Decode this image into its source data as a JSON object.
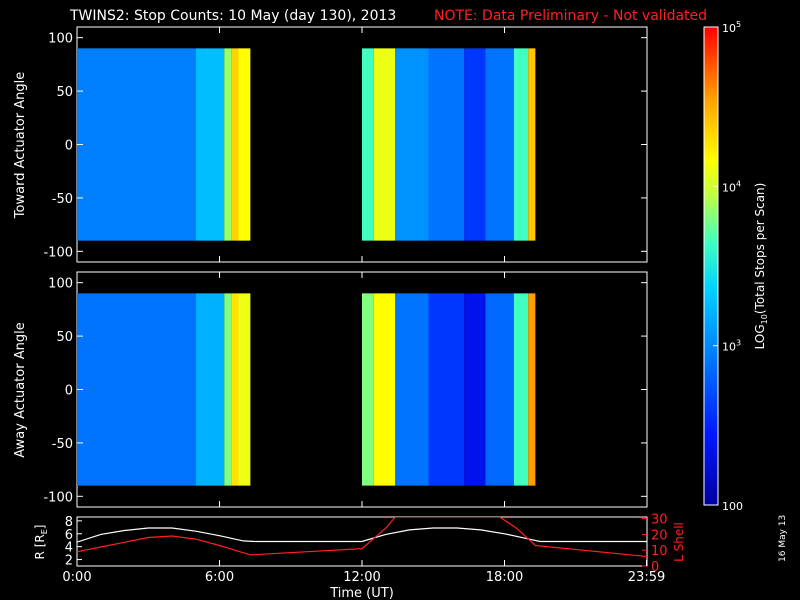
{
  "title": {
    "main": "TWINS2: Stop Counts: 10 May (day 130), 2013",
    "note": "NOTE: Data Preliminary - Not validated"
  },
  "colors": {
    "background": "#000000",
    "axes": "#ffffff",
    "note": "#ff2020",
    "lshell_line": "#ff2020",
    "r_line": "#ffffff"
  },
  "colorbar": {
    "label": "LOG10(Total Stops per Scan)",
    "label_base": "LOG",
    "label_sub": "10",
    "label_rest": "(Total Stops per Scan)",
    "ticks": [
      {
        "value": 100,
        "text": "100"
      },
      {
        "value": 1000,
        "text": "10",
        "exp": "3"
      },
      {
        "value": 10000,
        "text": "10",
        "exp": "4"
      },
      {
        "value": 100000,
        "text": "10",
        "exp": "5"
      }
    ],
    "range": [
      100,
      100000
    ],
    "scale": "log"
  },
  "date_stamp": "16 May 13",
  "chart_data": [
    {
      "type": "heatmap",
      "panel": "toward",
      "ylabel": "Toward Actuator Angle",
      "ylim": [
        -110,
        110
      ],
      "yticks": [
        -100,
        -50,
        0,
        50,
        100
      ],
      "xlim": [
        0,
        24
      ],
      "data_windows": [
        [
          0.0,
          7.3
        ],
        [
          12.0,
          19.3
        ]
      ],
      "angle_range": [
        -90,
        90
      ],
      "bands": [
        {
          "t0": 0.0,
          "t1": 5.0,
          "level": 0.32
        },
        {
          "t0": 5.0,
          "t1": 6.2,
          "level": 0.42
        },
        {
          "t0": 6.2,
          "t1": 6.5,
          "level": 0.62
        },
        {
          "t0": 6.5,
          "t1": 6.8,
          "level": 0.78
        },
        {
          "t0": 6.8,
          "t1": 7.3,
          "level": 0.72
        },
        {
          "t0": 12.0,
          "t1": 12.5,
          "level": 0.55
        },
        {
          "t0": 12.5,
          "t1": 13.4,
          "level": 0.7
        },
        {
          "t0": 13.4,
          "t1": 14.8,
          "level": 0.35
        },
        {
          "t0": 14.8,
          "t1": 16.3,
          "level": 0.3
        },
        {
          "t0": 16.3,
          "t1": 17.2,
          "level": 0.2
        },
        {
          "t0": 17.2,
          "t1": 18.4,
          "level": 0.3
        },
        {
          "t0": 18.4,
          "t1": 19.0,
          "level": 0.55
        },
        {
          "t0": 19.0,
          "t1": 19.3,
          "level": 0.8
        }
      ]
    },
    {
      "type": "heatmap",
      "panel": "away",
      "ylabel": "Away Actuator Angle",
      "ylim": [
        -110,
        110
      ],
      "yticks": [
        -100,
        -50,
        0,
        50,
        100
      ],
      "xlim": [
        0,
        24
      ],
      "data_windows": [
        [
          0.0,
          7.3
        ],
        [
          12.0,
          19.3
        ]
      ],
      "angle_range": [
        -90,
        90
      ],
      "bands": [
        {
          "t0": 0.0,
          "t1": 5.0,
          "level": 0.3
        },
        {
          "t0": 5.0,
          "t1": 6.2,
          "level": 0.4
        },
        {
          "t0": 6.2,
          "t1": 6.5,
          "level": 0.6
        },
        {
          "t0": 6.5,
          "t1": 6.8,
          "level": 0.76
        },
        {
          "t0": 6.8,
          "t1": 7.3,
          "level": 0.7
        },
        {
          "t0": 12.0,
          "t1": 12.5,
          "level": 0.6
        },
        {
          "t0": 12.5,
          "t1": 13.4,
          "level": 0.72
        },
        {
          "t0": 13.4,
          "t1": 14.8,
          "level": 0.3
        },
        {
          "t0": 14.8,
          "t1": 16.3,
          "level": 0.2
        },
        {
          "t0": 16.3,
          "t1": 17.2,
          "level": 0.12
        },
        {
          "t0": 17.2,
          "t1": 18.4,
          "level": 0.28
        },
        {
          "t0": 18.4,
          "t1": 19.0,
          "level": 0.55
        },
        {
          "t0": 19.0,
          "t1": 19.3,
          "level": 0.85
        }
      ]
    },
    {
      "type": "line",
      "panel": "orbit",
      "xlabel": "Time (UT)",
      "xticks": [
        {
          "value": 0,
          "text": "0:00"
        },
        {
          "value": 6,
          "text": "6:00"
        },
        {
          "value": 12,
          "text": "12:00"
        },
        {
          "value": 18,
          "text": "18:00"
        },
        {
          "value": 23.98,
          "text": "23:59"
        }
      ],
      "xlim": [
        0,
        24
      ],
      "left_axis": {
        "label": "R [RE]",
        "label_base": "R [R",
        "label_sub": "E",
        "label_end": "]",
        "ylim": [
          1,
          8.6
        ],
        "ticks": [
          2,
          4,
          6,
          8
        ]
      },
      "right_axis": {
        "label": "L Shell",
        "ylim": [
          0,
          31
        ],
        "ticks": [
          0,
          10,
          20,
          30
        ]
      },
      "series": [
        {
          "name": "R",
          "axis": "left",
          "x": [
            0,
            1,
            2,
            3,
            4,
            5,
            6,
            7,
            7.5,
            12,
            13,
            14,
            15,
            16,
            17,
            18,
            19,
            19.5,
            24
          ],
          "y": [
            4.7,
            5.9,
            6.5,
            6.9,
            6.9,
            6.4,
            5.7,
            4.9,
            4.8,
            4.8,
            5.9,
            6.6,
            6.9,
            6.9,
            6.6,
            6.0,
            5.2,
            4.8,
            4.8
          ]
        },
        {
          "name": "L Shell",
          "axis": "right",
          "x": [
            0,
            1,
            2,
            3,
            4,
            5,
            6,
            7.3,
            12,
            13,
            13.4,
            17.8,
            18.5,
            19.3,
            24
          ],
          "y": [
            9,
            12,
            15,
            18,
            19,
            17,
            13,
            7,
            11,
            24,
            31,
            31,
            24,
            13,
            6
          ]
        }
      ]
    }
  ]
}
